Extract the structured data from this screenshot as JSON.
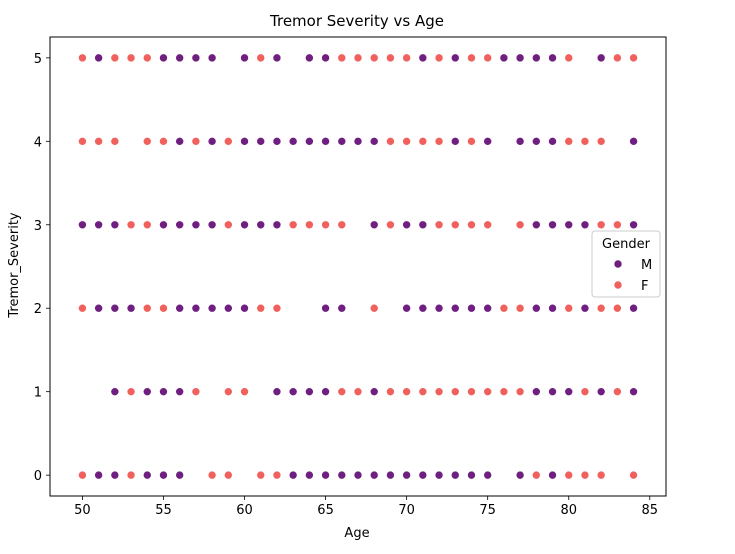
{
  "chart_data": {
    "type": "scatter",
    "title": "Tremor Severity vs Age",
    "xlabel": "Age",
    "ylabel": "Tremor_Severity",
    "xlim": [
      48,
      86
    ],
    "ylim": [
      -0.25,
      5.25
    ],
    "x_ticks": [
      50,
      55,
      60,
      65,
      70,
      75,
      80,
      85
    ],
    "y_ticks": [
      0,
      1,
      2,
      3,
      4,
      5
    ],
    "grid": false,
    "legend": {
      "title": "Gender",
      "placement": "center-right"
    },
    "series": [
      {
        "name": "M",
        "color": "#6e1f80",
        "points": [
          [
            51,
            5
          ],
          [
            52,
            5
          ],
          [
            55,
            5
          ],
          [
            56,
            5
          ],
          [
            57,
            5
          ],
          [
            58,
            5
          ],
          [
            60,
            5
          ],
          [
            62,
            5
          ],
          [
            64,
            5
          ],
          [
            65,
            5
          ],
          [
            71,
            5
          ],
          [
            73,
            5
          ],
          [
            76,
            5
          ],
          [
            77,
            5
          ],
          [
            78,
            5
          ],
          [
            79,
            5
          ],
          [
            82,
            5
          ],
          [
            56,
            4
          ],
          [
            58,
            4
          ],
          [
            60,
            4
          ],
          [
            61,
            4
          ],
          [
            62,
            4
          ],
          [
            63,
            4
          ],
          [
            64,
            4
          ],
          [
            65,
            4
          ],
          [
            66,
            4
          ],
          [
            67,
            4
          ],
          [
            68,
            4
          ],
          [
            73,
            4
          ],
          [
            75,
            4
          ],
          [
            77,
            4
          ],
          [
            78,
            4
          ],
          [
            79,
            4
          ],
          [
            84,
            4
          ],
          [
            50,
            3
          ],
          [
            51,
            3
          ],
          [
            52,
            3
          ],
          [
            55,
            3
          ],
          [
            56,
            3
          ],
          [
            57,
            3
          ],
          [
            58,
            3
          ],
          [
            60,
            3
          ],
          [
            61,
            3
          ],
          [
            62,
            3
          ],
          [
            68,
            3
          ],
          [
            70,
            3
          ],
          [
            71,
            3
          ],
          [
            78,
            3
          ],
          [
            79,
            3
          ],
          [
            80,
            3
          ],
          [
            81,
            3
          ],
          [
            84,
            3
          ],
          [
            51,
            2
          ],
          [
            52,
            2
          ],
          [
            53,
            2
          ],
          [
            56,
            2
          ],
          [
            57,
            2
          ],
          [
            58,
            2
          ],
          [
            59,
            2
          ],
          [
            60,
            2
          ],
          [
            65,
            2
          ],
          [
            66,
            2
          ],
          [
            70,
            2
          ],
          [
            71,
            2
          ],
          [
            72,
            2
          ],
          [
            73,
            2
          ],
          [
            74,
            2
          ],
          [
            75,
            2
          ],
          [
            78,
            2
          ],
          [
            79,
            2
          ],
          [
            81,
            2
          ],
          [
            84,
            2
          ],
          [
            52,
            1
          ],
          [
            54,
            1
          ],
          [
            55,
            1
          ],
          [
            56,
            1
          ],
          [
            62,
            1
          ],
          [
            63,
            1
          ],
          [
            64,
            1
          ],
          [
            65,
            1
          ],
          [
            68,
            1
          ],
          [
            78,
            1
          ],
          [
            79,
            1
          ],
          [
            80,
            1
          ],
          [
            82,
            1
          ],
          [
            84,
            1
          ],
          [
            51,
            0
          ],
          [
            52,
            0
          ],
          [
            54,
            0
          ],
          [
            55,
            0
          ],
          [
            56,
            0
          ],
          [
            63,
            0
          ],
          [
            64,
            0
          ],
          [
            65,
            0
          ],
          [
            66,
            0
          ],
          [
            67,
            0
          ],
          [
            68,
            0
          ],
          [
            69,
            0
          ],
          [
            70,
            0
          ],
          [
            71,
            0
          ],
          [
            72,
            0
          ],
          [
            73,
            0
          ],
          [
            74,
            0
          ],
          [
            75,
            0
          ],
          [
            77,
            0
          ],
          [
            79,
            0
          ]
        ]
      },
      {
        "name": "F",
        "color": "#f0605d",
        "points": [
          [
            50,
            5
          ],
          [
            52,
            5
          ],
          [
            53,
            5
          ],
          [
            54,
            5
          ],
          [
            61,
            5
          ],
          [
            66,
            5
          ],
          [
            67,
            5
          ],
          [
            68,
            5
          ],
          [
            69,
            5
          ],
          [
            70,
            5
          ],
          [
            72,
            5
          ],
          [
            74,
            5
          ],
          [
            75,
            5
          ],
          [
            80,
            5
          ],
          [
            83,
            5
          ],
          [
            84,
            5
          ],
          [
            50,
            4
          ],
          [
            51,
            4
          ],
          [
            52,
            4
          ],
          [
            54,
            4
          ],
          [
            55,
            4
          ],
          [
            57,
            4
          ],
          [
            59,
            4
          ],
          [
            69,
            4
          ],
          [
            70,
            4
          ],
          [
            71,
            4
          ],
          [
            72,
            4
          ],
          [
            74,
            4
          ],
          [
            80,
            4
          ],
          [
            81,
            4
          ],
          [
            82,
            4
          ],
          [
            53,
            3
          ],
          [
            54,
            3
          ],
          [
            59,
            3
          ],
          [
            63,
            3
          ],
          [
            64,
            3
          ],
          [
            65,
            3
          ],
          [
            66,
            3
          ],
          [
            69,
            3
          ],
          [
            72,
            3
          ],
          [
            73,
            3
          ],
          [
            74,
            3
          ],
          [
            75,
            3
          ],
          [
            77,
            3
          ],
          [
            82,
            3
          ],
          [
            83,
            3
          ],
          [
            50,
            2
          ],
          [
            54,
            2
          ],
          [
            55,
            2
          ],
          [
            61,
            2
          ],
          [
            62,
            2
          ],
          [
            68,
            2
          ],
          [
            76,
            2
          ],
          [
            77,
            2
          ],
          [
            80,
            2
          ],
          [
            82,
            2
          ],
          [
            83,
            2
          ],
          [
            53,
            1
          ],
          [
            57,
            1
          ],
          [
            59,
            1
          ],
          [
            60,
            1
          ],
          [
            66,
            1
          ],
          [
            67,
            1
          ],
          [
            69,
            1
          ],
          [
            70,
            1
          ],
          [
            71,
            1
          ],
          [
            72,
            1
          ],
          [
            73,
            1
          ],
          [
            74,
            1
          ],
          [
            75,
            1
          ],
          [
            76,
            1
          ],
          [
            77,
            1
          ],
          [
            81,
            1
          ],
          [
            83,
            1
          ],
          [
            50,
            0
          ],
          [
            53,
            0
          ],
          [
            58,
            0
          ],
          [
            59,
            0
          ],
          [
            61,
            0
          ],
          [
            62,
            0
          ],
          [
            78,
            0
          ],
          [
            80,
            0
          ],
          [
            81,
            0
          ],
          [
            82,
            0
          ],
          [
            84,
            0
          ]
        ]
      }
    ]
  }
}
